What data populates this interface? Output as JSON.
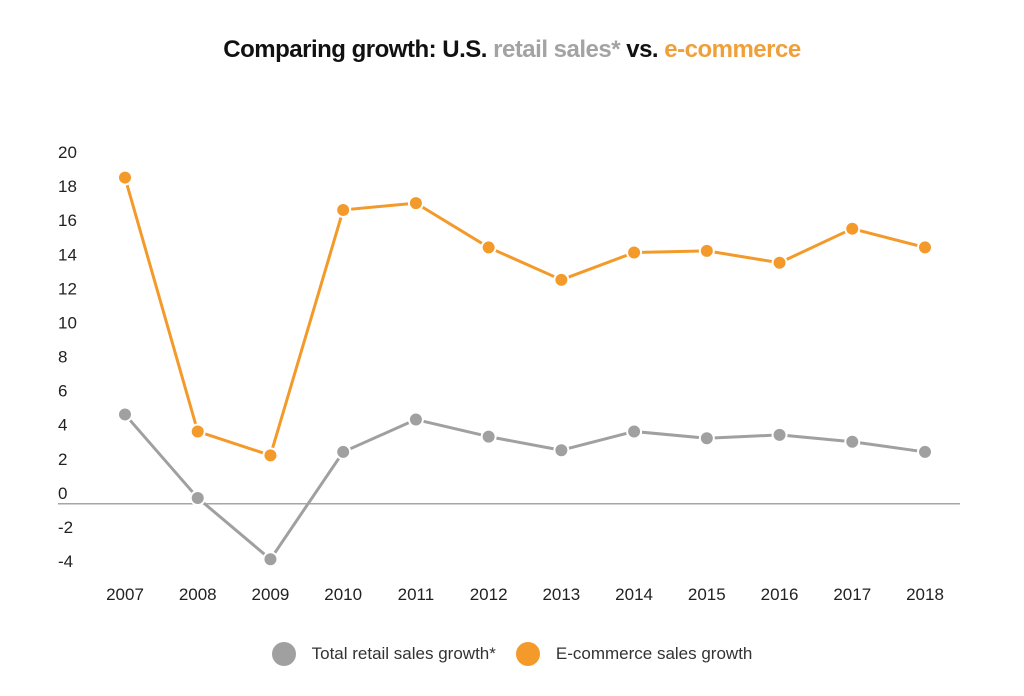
{
  "chart_data": {
    "type": "line",
    "title_parts": [
      {
        "text": "Comparing growth: U.S. ",
        "color": "#111111"
      },
      {
        "text": "retail sales*",
        "color": "#a3a3a3"
      },
      {
        "text": " vs. ",
        "color": "#111111"
      },
      {
        "text": "e-commerce",
        "color": "#f0a03a"
      }
    ],
    "x": [
      "2007",
      "2008",
      "2009",
      "2010",
      "2011",
      "2012",
      "2013",
      "2014",
      "2015",
      "2016",
      "2017",
      "2018"
    ],
    "yticks": [
      20,
      18,
      16,
      14,
      12,
      10,
      8,
      6,
      4,
      2,
      0,
      -2,
      -4
    ],
    "ylim": [
      -4,
      20
    ],
    "grid": false,
    "legend_position": "bottom",
    "series": [
      {
        "name": "Total retail sales growth*",
        "color": "#a0a0a0",
        "values": [
          4.6,
          -0.3,
          -3.9,
          2.4,
          4.3,
          3.3,
          2.5,
          3.6,
          3.2,
          3.4,
          3.0,
          2.4
        ]
      },
      {
        "name": "E-commerce sales growth",
        "color": "#f39a2b",
        "values": [
          18.5,
          3.6,
          2.2,
          16.6,
          17.0,
          14.4,
          12.5,
          14.1,
          14.2,
          13.5,
          15.5,
          14.4
        ]
      }
    ]
  }
}
